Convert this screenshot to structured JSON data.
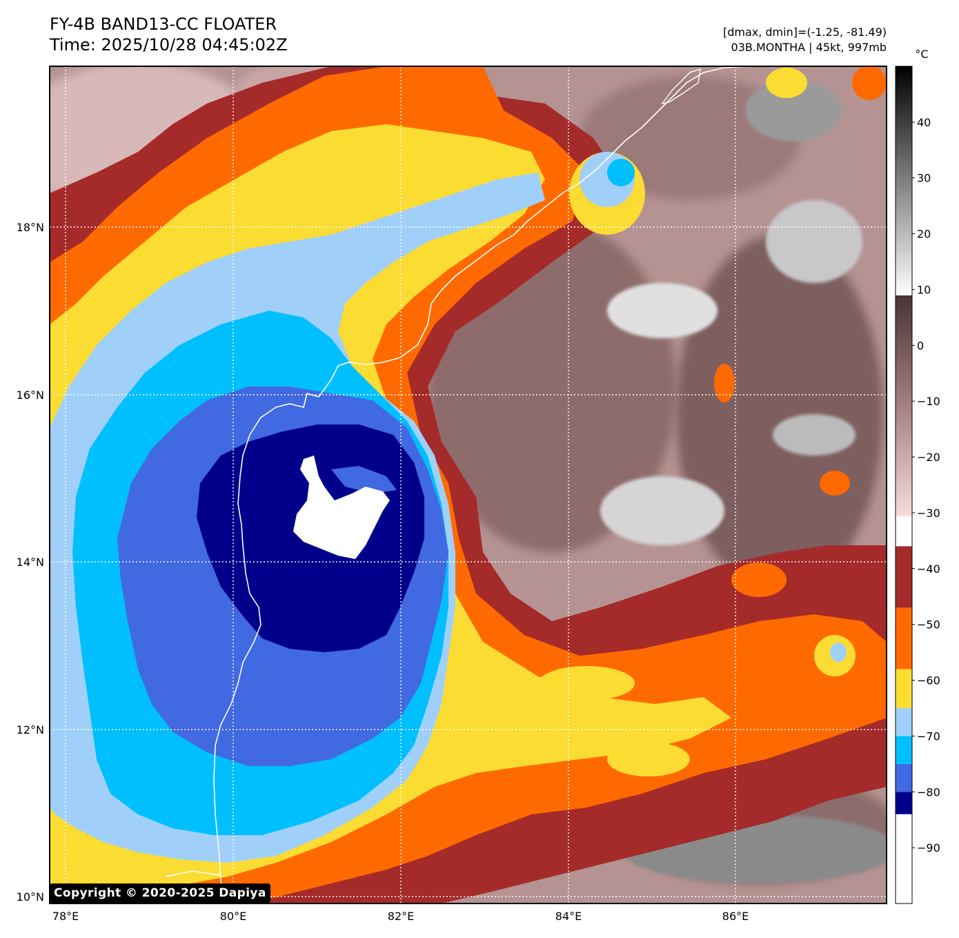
{
  "header": {
    "title_line1": "FY-4B BAND13-CC FLOATER",
    "title_line2": "Time: 2025/10/28 04:45:02Z",
    "info_line1": "[dmax, dmin]=(-1.25, -81.49)",
    "info_line2": "03B.MONTHA | 45kt, 997mb"
  },
  "map": {
    "lat_labels": [
      "18°N",
      "16°N",
      "14°N",
      "12°N",
      "10°N"
    ],
    "lon_labels": [
      "78°E",
      "80°E",
      "82°E",
      "84°E",
      "86°E"
    ],
    "lat_range": [
      10,
      20
    ],
    "lon_range": [
      77.8,
      87.8
    ]
  },
  "colorbar": {
    "unit": "°C",
    "tick_labels": [
      "40",
      "30",
      "20",
      "10",
      "0",
      "−10",
      "−20",
      "−30",
      "−40",
      "−50",
      "−60",
      "−70",
      "−80",
      "−90"
    ],
    "range": [
      -100,
      50
    ],
    "bands": [
      {
        "from": -100,
        "to": -84,
        "color": "#ffffff"
      },
      {
        "from": -84,
        "to": -80,
        "color": "#00008b"
      },
      {
        "from": -80,
        "to": -75,
        "color": "#4169e1"
      },
      {
        "from": -75,
        "to": -70,
        "color": "#00bfff"
      },
      {
        "from": -70,
        "to": -65,
        "color": "#a0d0fa"
      },
      {
        "from": -65,
        "to": -58,
        "color": "#fbdc32"
      },
      {
        "from": -58,
        "to": -47,
        "color": "#ff6a00"
      },
      {
        "from": -47,
        "to": -36,
        "color": "#a52a2a"
      }
    ],
    "gradient_colors": {
      "cold_end": "#f7dcdc",
      "mid": "#a58080",
      "warm_end": "#4a3434",
      "gray_low": "#ffffff",
      "gray_high": "#000000"
    }
  },
  "copyright": "Copyright © 2020-2025 Dapiya"
}
